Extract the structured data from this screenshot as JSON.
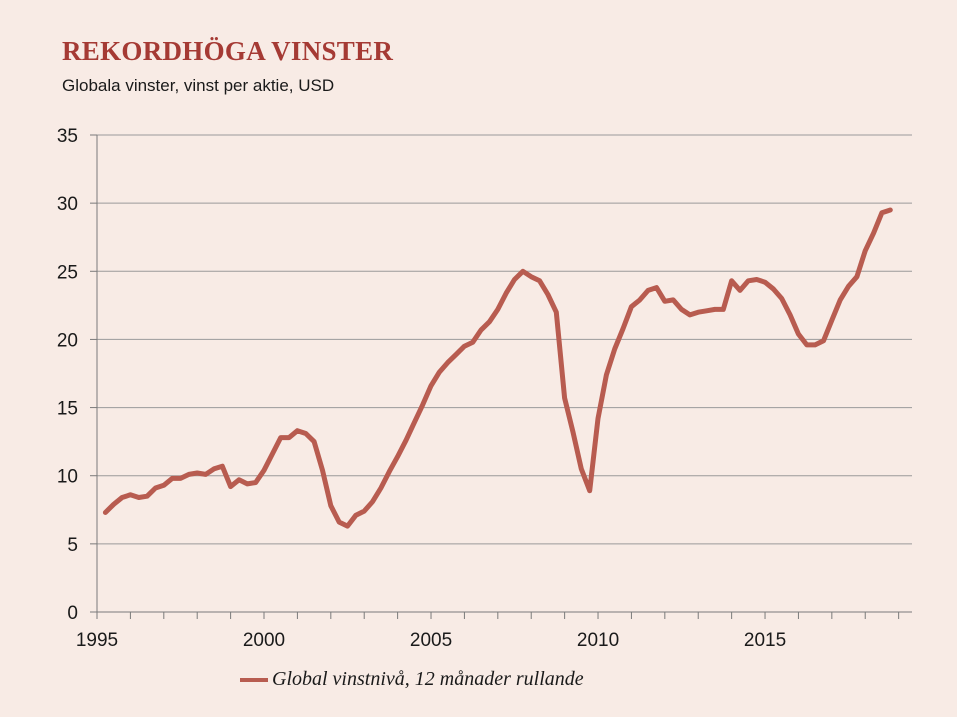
{
  "title": "REKORDHÖGA VINSTER",
  "subtitle": "Globala vinster, vinst per aktie, USD",
  "colors": {
    "background": "#f8ebe5",
    "title": "#a53a34",
    "line": "#b85c50",
    "grid": "#9a9a9a",
    "axis": "#7a7a7a"
  },
  "chart_data": {
    "type": "line",
    "title": "REKORDHÖGA VINSTER",
    "subtitle": "Globala vinster, vinst per aktie, USD",
    "xlim": [
      1995,
      2019.4
    ],
    "ylim": [
      0,
      35
    ],
    "x_ticks": [
      1995,
      2000,
      2005,
      2010,
      2015
    ],
    "x_tick_labels": [
      "1995",
      "2000",
      "2005",
      "2010",
      "2015"
    ],
    "y_ticks": [
      0,
      5,
      10,
      15,
      20,
      25,
      30,
      35
    ],
    "y_tick_labels": [
      "0",
      "5",
      "10",
      "15",
      "20",
      "25",
      "30",
      "35"
    ],
    "grid": "horizontal",
    "legend": "bottom",
    "series": [
      {
        "name": "Global vinstnivå, 12 månader rullande",
        "x": [
          1995.25,
          1995.5,
          1995.75,
          1996.0,
          1996.25,
          1996.5,
          1996.75,
          1997.0,
          1997.25,
          1997.5,
          1997.75,
          1998.0,
          1998.25,
          1998.5,
          1998.75,
          1999.0,
          1999.25,
          1999.5,
          1999.75,
          2000.0,
          2000.25,
          2000.5,
          2000.75,
          2001.0,
          2001.25,
          2001.5,
          2001.75,
          2002.0,
          2002.25,
          2002.5,
          2002.75,
          2003.0,
          2003.25,
          2003.5,
          2003.75,
          2004.0,
          2004.25,
          2004.5,
          2004.75,
          2005.0,
          2005.25,
          2005.5,
          2005.75,
          2006.0,
          2006.25,
          2006.5,
          2006.75,
          2007.0,
          2007.25,
          2007.5,
          2007.75,
          2008.0,
          2008.25,
          2008.5,
          2008.75,
          2009.0,
          2009.25,
          2009.5,
          2009.75,
          2010.0,
          2010.25,
          2010.5,
          2010.75,
          2011.0,
          2011.25,
          2011.5,
          2011.75,
          2012.0,
          2012.25,
          2012.5,
          2012.75,
          2013.0,
          2013.25,
          2013.5,
          2013.75,
          2014.0,
          2014.25,
          2014.5,
          2014.75,
          2015.0,
          2015.25,
          2015.5,
          2015.75,
          2016.0,
          2016.25,
          2016.5,
          2016.75,
          2017.0,
          2017.25,
          2017.5,
          2017.75,
          2018.0,
          2018.25,
          2018.5,
          2018.75
        ],
        "y": [
          7.3,
          7.9,
          8.4,
          8.6,
          8.4,
          8.5,
          9.1,
          9.3,
          9.8,
          9.8,
          10.1,
          10.2,
          10.1,
          10.5,
          10.7,
          9.2,
          9.7,
          9.4,
          9.5,
          10.4,
          11.6,
          12.8,
          12.8,
          13.3,
          13.1,
          12.5,
          10.4,
          7.8,
          6.6,
          6.3,
          7.1,
          7.4,
          8.1,
          9.1,
          10.3,
          11.4,
          12.6,
          13.9,
          15.2,
          16.6,
          17.6,
          18.3,
          18.9,
          19.5,
          19.8,
          20.7,
          21.3,
          22.2,
          23.4,
          24.4,
          25.0,
          24.6,
          24.3,
          23.3,
          22.0,
          15.7,
          13.2,
          10.5,
          8.9,
          14.2,
          17.4,
          19.3,
          20.8,
          22.4,
          22.9,
          23.6,
          23.8,
          22.8,
          22.9,
          22.2,
          21.8,
          22.0,
          22.1,
          22.2,
          22.2,
          24.3,
          23.6,
          24.3,
          24.4,
          24.2,
          23.7,
          23.0,
          21.8,
          20.4,
          19.6,
          19.6,
          19.9,
          21.4,
          22.9,
          23.9,
          24.6,
          26.5,
          27.8,
          29.3,
          29.5
        ]
      }
    ]
  }
}
